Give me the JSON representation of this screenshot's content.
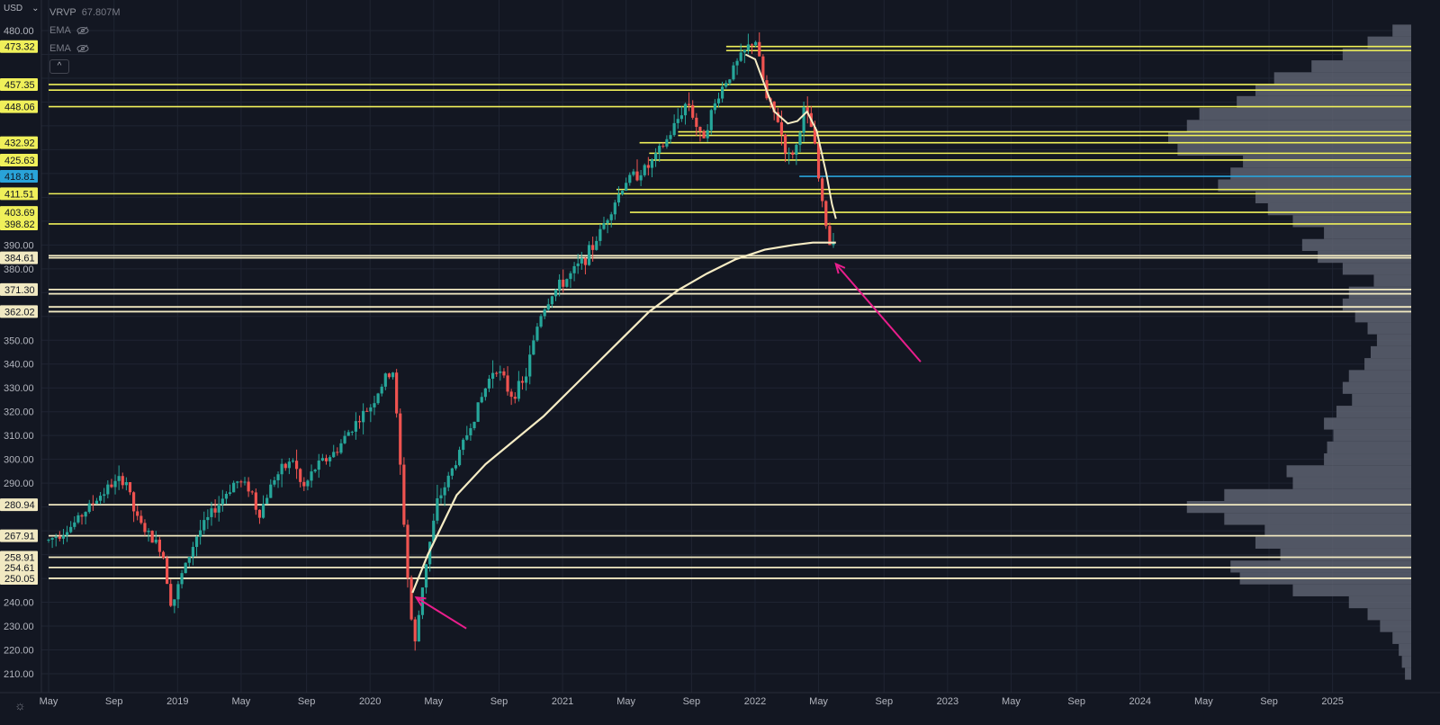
{
  "header": {
    "currency": "USD",
    "currency_caret": "⌄"
  },
  "legend": {
    "vrvp_label": "VRVP",
    "vrvp_value": "67.807M",
    "ema1_label": "EMA",
    "ema2_label": "EMA",
    "collapse_glyph": "^"
  },
  "icons": {
    "settings": "gear-icon",
    "visibility": "eye-off-icon",
    "collapse": "chevron-up-icon"
  },
  "colors": {
    "background": "#131722",
    "grid": "#1f2432",
    "up": "#26a69a",
    "down": "#ef5350",
    "resistance_line": "#f0f05a",
    "support_line": "#f1e9c2",
    "ema": "#f6ecc4",
    "current_line": "#29a3d9",
    "arrow": "#e91e8c",
    "volume_profile": "#5d6170"
  },
  "chart_data": {
    "type": "candlestick",
    "y_axis": {
      "min": 205,
      "max": 485,
      "ticks": [
        210,
        220,
        230,
        240,
        250,
        260,
        270,
        280,
        290,
        300,
        310,
        320,
        330,
        340,
        350,
        360,
        370,
        380,
        390,
        400,
        410,
        420,
        430,
        440,
        450,
        460,
        470,
        480
      ],
      "tick_labels": [
        "210.00",
        "220.00",
        "230.00",
        "240.00",
        "",
        "",
        "",
        "",
        "290.00",
        "300.00",
        "310.00",
        "320.00",
        "330.00",
        "340.00",
        "350.00",
        "",
        "",
        "380.00",
        "390.00",
        "",
        "",
        "",
        "",
        "",
        "",
        "",
        "",
        "480.00"
      ]
    },
    "x_axis": {
      "start": 2018.33,
      "end": 2025.17,
      "ticks": [
        {
          "t": 2018.33,
          "label": "May"
        },
        {
          "t": 2018.67,
          "label": "Sep"
        },
        {
          "t": 2019.0,
          "label": "2019"
        },
        {
          "t": 2019.33,
          "label": "May"
        },
        {
          "t": 2019.67,
          "label": "Sep"
        },
        {
          "t": 2020.0,
          "label": "2020"
        },
        {
          "t": 2020.33,
          "label": "May"
        },
        {
          "t": 2020.67,
          "label": "Sep"
        },
        {
          "t": 2021.0,
          "label": "2021"
        },
        {
          "t": 2021.33,
          "label": "May"
        },
        {
          "t": 2021.67,
          "label": "Sep"
        },
        {
          "t": 2022.0,
          "label": "2022"
        },
        {
          "t": 2022.33,
          "label": "May"
        },
        {
          "t": 2022.67,
          "label": "Sep"
        },
        {
          "t": 2023.0,
          "label": "2023"
        },
        {
          "t": 2023.33,
          "label": "May"
        },
        {
          "t": 2023.67,
          "label": "Sep"
        },
        {
          "t": 2024.0,
          "label": "2024"
        },
        {
          "t": 2024.33,
          "label": "May"
        },
        {
          "t": 2024.67,
          "label": "Sep"
        },
        {
          "t": 2025.0,
          "label": "2025"
        }
      ]
    },
    "price_path": [
      [
        2018.33,
        266
      ],
      [
        2018.45,
        272
      ],
      [
        2018.55,
        281
      ],
      [
        2018.65,
        289
      ],
      [
        2018.73,
        292
      ],
      [
        2018.78,
        276
      ],
      [
        2018.85,
        268
      ],
      [
        2018.92,
        262
      ],
      [
        2018.97,
        238
      ],
      [
        2019.02,
        251
      ],
      [
        2019.1,
        268
      ],
      [
        2019.2,
        280
      ],
      [
        2019.3,
        291
      ],
      [
        2019.38,
        288
      ],
      [
        2019.42,
        276
      ],
      [
        2019.5,
        292
      ],
      [
        2019.6,
        300
      ],
      [
        2019.65,
        287
      ],
      [
        2019.72,
        297
      ],
      [
        2019.82,
        303
      ],
      [
        2019.9,
        313
      ],
      [
        2020.0,
        322
      ],
      [
        2020.08,
        334
      ],
      [
        2020.12,
        337
      ],
      [
        2020.15,
        305
      ],
      [
        2020.2,
        245
      ],
      [
        2020.23,
        220
      ],
      [
        2020.28,
        252
      ],
      [
        2020.35,
        282
      ],
      [
        2020.45,
        300
      ],
      [
        2020.55,
        320
      ],
      [
        2020.65,
        340
      ],
      [
        2020.73,
        327
      ],
      [
        2020.8,
        332
      ],
      [
        2020.88,
        360
      ],
      [
        2020.95,
        370
      ],
      [
        2021.05,
        378
      ],
      [
        2021.15,
        388
      ],
      [
        2021.25,
        405
      ],
      [
        2021.33,
        417
      ],
      [
        2021.45,
        423
      ],
      [
        2021.55,
        435
      ],
      [
        2021.65,
        451
      ],
      [
        2021.72,
        434
      ],
      [
        2021.82,
        455
      ],
      [
        2021.92,
        468
      ],
      [
        2022.0,
        477
      ],
      [
        2022.06,
        451
      ],
      [
        2022.12,
        442
      ],
      [
        2022.17,
        426
      ],
      [
        2022.22,
        432
      ],
      [
        2022.25,
        447
      ],
      [
        2022.3,
        438
      ],
      [
        2022.34,
        411
      ],
      [
        2022.37,
        398
      ],
      [
        2022.4,
        385
      ],
      [
        2022.42,
        411
      ]
    ],
    "ema_path": [
      [
        2020.22,
        244
      ],
      [
        2020.3,
        260
      ],
      [
        2020.45,
        285
      ],
      [
        2020.6,
        298
      ],
      [
        2020.75,
        308
      ],
      [
        2020.9,
        318
      ],
      [
        2021.0,
        326
      ],
      [
        2021.15,
        338
      ],
      [
        2021.3,
        350
      ],
      [
        2021.45,
        362
      ],
      [
        2021.6,
        371
      ],
      [
        2021.75,
        378
      ],
      [
        2021.9,
        384
      ],
      [
        2022.05,
        388
      ],
      [
        2022.2,
        390
      ],
      [
        2022.3,
        391
      ],
      [
        2022.42,
        391
      ]
    ],
    "short_ema_path": [
      [
        2021.95,
        470
      ],
      [
        2022.0,
        468
      ],
      [
        2022.05,
        457
      ],
      [
        2022.1,
        446
      ],
      [
        2022.17,
        441
      ],
      [
        2022.22,
        442
      ],
      [
        2022.27,
        446
      ],
      [
        2022.32,
        438
      ],
      [
        2022.37,
        420
      ],
      [
        2022.4,
        407
      ],
      [
        2022.42,
        401
      ]
    ],
    "levels": [
      {
        "price": 473.32,
        "kind": "resistance",
        "from": 2021.85,
        "label": "473.32"
      },
      {
        "price": 471.6,
        "kind": "resistance",
        "from": 2021.85,
        "label": ""
      },
      {
        "price": 457.35,
        "kind": "resistance",
        "from": 2018.33,
        "label": "457.35"
      },
      {
        "price": 455.0,
        "kind": "resistance",
        "from": 2018.33,
        "label": ""
      },
      {
        "price": 448.06,
        "kind": "resistance",
        "from": 2018.33,
        "label": "448.06"
      },
      {
        "price": 437.5,
        "kind": "resistance",
        "from": 2021.6,
        "label": ""
      },
      {
        "price": 436.0,
        "kind": "resistance",
        "from": 2021.6,
        "label": ""
      },
      {
        "price": 432.92,
        "kind": "resistance",
        "from": 2021.4,
        "label": "432.92"
      },
      {
        "price": 428.5,
        "kind": "resistance",
        "from": 2021.45,
        "label": ""
      },
      {
        "price": 425.63,
        "kind": "resistance",
        "from": 2021.45,
        "label": "425.63"
      },
      {
        "price": 413.3,
        "kind": "resistance",
        "from": 2021.28,
        "label": ""
      },
      {
        "price": 411.51,
        "kind": "resistance",
        "from": 2018.33,
        "label": "411.51"
      },
      {
        "price": 403.69,
        "kind": "resistance",
        "from": 2021.35,
        "label": "403.69"
      },
      {
        "price": 398.82,
        "kind": "resistance",
        "from": 2018.33,
        "label": "398.82"
      },
      {
        "price": 385.5,
        "kind": "support",
        "from": 2018.33,
        "label": ""
      },
      {
        "price": 384.61,
        "kind": "support",
        "from": 2018.33,
        "label": "384.61"
      },
      {
        "price": 371.3,
        "kind": "support",
        "from": 2018.33,
        "label": "371.30"
      },
      {
        "price": 369.5,
        "kind": "support",
        "from": 2018.33,
        "label": ""
      },
      {
        "price": 364.0,
        "kind": "support",
        "from": 2018.33,
        "label": ""
      },
      {
        "price": 362.02,
        "kind": "support",
        "from": 2018.33,
        "label": "362.02"
      },
      {
        "price": 280.94,
        "kind": "support",
        "from": 2018.33,
        "label": "280.94"
      },
      {
        "price": 267.91,
        "kind": "support",
        "from": 2018.33,
        "label": "267.91"
      },
      {
        "price": 258.91,
        "kind": "support",
        "from": 2018.33,
        "label": "258.91"
      },
      {
        "price": 254.61,
        "kind": "support",
        "from": 2018.33,
        "label": "254.61"
      },
      {
        "price": 250.05,
        "kind": "support",
        "from": 2018.33,
        "label": "250.05"
      }
    ],
    "current_price": {
      "price": 418.81,
      "from": 2022.23,
      "label": "418.81"
    },
    "annotations": [
      {
        "type": "arrow",
        "from": [
          2020.5,
          229
        ],
        "to": [
          2020.24,
          242
        ]
      },
      {
        "type": "arrow",
        "from": [
          2022.86,
          341
        ],
        "to": [
          2022.42,
          382
        ]
      }
    ],
    "volume_profile": [
      [
        210,
        2
      ],
      [
        215,
        3
      ],
      [
        220,
        4
      ],
      [
        225,
        6
      ],
      [
        230,
        10
      ],
      [
        235,
        14
      ],
      [
        240,
        20
      ],
      [
        245,
        38
      ],
      [
        250,
        55
      ],
      [
        255,
        58
      ],
      [
        260,
        42
      ],
      [
        265,
        50
      ],
      [
        270,
        47
      ],
      [
        275,
        60
      ],
      [
        280,
        72
      ],
      [
        285,
        60
      ],
      [
        290,
        38
      ],
      [
        295,
        40
      ],
      [
        300,
        28
      ],
      [
        305,
        27
      ],
      [
        310,
        25
      ],
      [
        315,
        28
      ],
      [
        320,
        24
      ],
      [
        325,
        19
      ],
      [
        330,
        22
      ],
      [
        335,
        20
      ],
      [
        340,
        15
      ],
      [
        345,
        13
      ],
      [
        350,
        11
      ],
      [
        355,
        14
      ],
      [
        360,
        18
      ],
      [
        365,
        22
      ],
      [
        370,
        20
      ],
      [
        375,
        12
      ],
      [
        380,
        22
      ],
      [
        385,
        30
      ],
      [
        390,
        35
      ],
      [
        395,
        28
      ],
      [
        400,
        38
      ],
      [
        405,
        46
      ],
      [
        410,
        50
      ],
      [
        415,
        62
      ],
      [
        420,
        58
      ],
      [
        425,
        54
      ],
      [
        430,
        75
      ],
      [
        435,
        78
      ],
      [
        440,
        72
      ],
      [
        445,
        68
      ],
      [
        450,
        56
      ],
      [
        455,
        50
      ],
      [
        460,
        44
      ],
      [
        465,
        32
      ],
      [
        470,
        22
      ],
      [
        475,
        14
      ],
      [
        480,
        6
      ]
    ]
  }
}
